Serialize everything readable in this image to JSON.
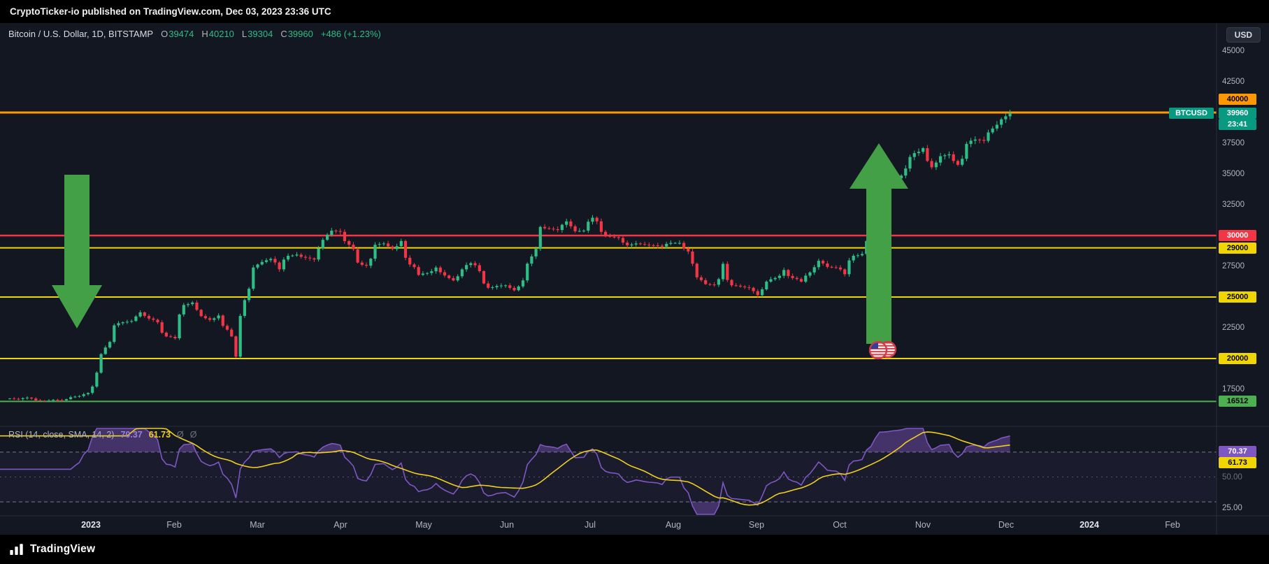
{
  "published_bar": {
    "text": "CryptoTicker-io published on TradingView.com, Dec 03, 2023 23:36 UTC"
  },
  "header": {
    "title": "Bitcoin / U.S. Dollar, 1D, BITSTAMP",
    "open_label": "O",
    "open_value": "39474",
    "high_label": "H",
    "high_value": "40210",
    "low_label": "L",
    "low_value": "39304",
    "close_label": "C",
    "close_value": "39960",
    "change": "+486 (+1.23%)",
    "currency_button": "USD"
  },
  "price_axis": {
    "labels": [
      "45000",
      "42500",
      "37500",
      "35000",
      "32500",
      "27500",
      "22500",
      "17500"
    ],
    "badges": [
      {
        "text": "40000",
        "value": 40000,
        "bg": "#ff9800",
        "fg": "#000000",
        "dy": -19
      },
      {
        "text": "39960",
        "value": 39960,
        "bg": "#089981",
        "fg": "#ffffff",
        "dy": 0
      },
      {
        "text": "23:41",
        "value": 39960,
        "bg": "#089981",
        "fg": "#ffffff",
        "dy": 16
      },
      {
        "text": "30000",
        "value": 30000,
        "bg": "#f23645",
        "fg": "#ffffff",
        "dy": 0
      },
      {
        "text": "29000",
        "value": 29000,
        "bg": "#f0d500",
        "fg": "#000000",
        "dy": 0
      },
      {
        "text": "25000",
        "value": 25000,
        "bg": "#f0d500",
        "fg": "#000000",
        "dy": 0
      },
      {
        "text": "20000",
        "value": 20000,
        "bg": "#f0d500",
        "fg": "#000000",
        "dy": 0
      },
      {
        "text": "16512",
        "value": 16512,
        "bg": "#4caf50",
        "fg": "#000000",
        "dy": 0
      }
    ],
    "symbol_tag": {
      "text": "BTCUSD",
      "bg": "#089981",
      "fg": "#ffffff",
      "value": 39960
    }
  },
  "rsi_axis": {
    "badges": [
      {
        "text": "70.37",
        "value": 70.37,
        "bg": "#7e57c2",
        "fg": "#ffffff"
      },
      {
        "text": "61.73",
        "value": 61.73,
        "bg": "#f0d500",
        "fg": "#000000"
      }
    ],
    "labels": [
      {
        "text": "50.00",
        "value": 50,
        "faint": true
      },
      {
        "text": "25.00",
        "value": 25,
        "faint": false
      }
    ]
  },
  "rsi_pane": {
    "title": "RSI (14, close, SMA, 14, 2)",
    "value": "70.37",
    "ma_value": "61.73",
    "icon": "Ø"
  },
  "time_axis": {
    "labels": [
      "2023",
      "Feb",
      "Mar",
      "Apr",
      "May",
      "Jun",
      "Jul",
      "Aug",
      "Sep",
      "Oct",
      "Nov",
      "Dec",
      "2024",
      "Feb"
    ],
    "years": [
      "2023",
      "2024"
    ]
  },
  "footer": {
    "brand": "TradingView"
  },
  "colors": {
    "background": "#131722",
    "bar": "#000000",
    "up": "#2ebd85",
    "down": "#f23645",
    "teal": "#089981",
    "orange": "#ff9800",
    "red": "#f23645",
    "yellow": "#f0d500",
    "green": "#4caf50",
    "rsi": "#7e57c2",
    "rsi_ma": "#f0cf1d",
    "axis_text": "#b2b5be",
    "arrow": "#43a047",
    "separator": "#2a2e39"
  },
  "chart_data": [
    {
      "type": "candlestick",
      "title": "Bitcoin / U.S. Dollar, 1D, BITSTAMP",
      "symbol": "BTCUSD",
      "exchange": "BITSTAMP",
      "timeframe": "1D",
      "last_ohlc": {
        "open": 39474,
        "high": 40210,
        "low": 39304,
        "close": 39960,
        "change": 486,
        "change_pct": 1.23
      },
      "y_axis_ticks": [
        45000,
        42500,
        40000,
        37500,
        35000,
        32500,
        30000,
        29000,
        27500,
        25000,
        22500,
        20000,
        17500,
        16512
      ],
      "x_range": [
        "Dec 2022",
        "Feb 2024"
      ],
      "start_date": "2022-12-14",
      "interval_days": 3,
      "approx_closes_3day": [
        16750,
        16700,
        16820,
        16600,
        16560,
        16640,
        16600,
        16850,
        16950,
        17200,
        18850,
        20900,
        22700,
        22950,
        23050,
        23750,
        23250,
        22950,
        21800,
        21650,
        24350,
        24550,
        23450,
        23150,
        23500,
        22350,
        20150,
        24750,
        27400,
        27850,
        28100,
        27250,
        28350,
        28450,
        28200,
        28050,
        29650,
        30400,
        30300,
        29250,
        27800,
        27550,
        29250,
        29350,
        28900,
        29550,
        27650,
        26800,
        26950,
        27400,
        26750,
        26350,
        27250,
        27750,
        27100,
        25750,
        25900,
        25950,
        25550,
        26350,
        28300,
        30700,
        30550,
        30450,
        31150,
        30350,
        30400,
        31450,
        30300,
        29900,
        29800,
        29200,
        29350,
        29250,
        29200,
        29100,
        29400,
        29400,
        28700,
        26600,
        26050,
        26000,
        27700,
        25950,
        25850,
        25750,
        25150,
        26250,
        26550,
        27200,
        26550,
        26250,
        27000,
        27950,
        27450,
        27400,
        26850,
        28350,
        28500,
        30100,
        33900,
        34150,
        34650,
        35450,
        36700,
        37100,
        35550,
        36450,
        36600,
        35750,
        37450,
        37800,
        37700,
        38700,
        39450,
        39960
      ],
      "levels": [
        {
          "value": 40000,
          "color": "#ff9800"
        },
        {
          "value": 30000,
          "color": "#f23645"
        },
        {
          "value": 29000,
          "color": "#f0d500"
        },
        {
          "value": 25000,
          "color": "#f0d500"
        },
        {
          "value": 20000,
          "color": "#f0d500"
        },
        {
          "value": 16512,
          "color": "#4caf50"
        }
      ],
      "annotations": [
        {
          "type": "arrow-down",
          "region": "Jan-Feb 2023",
          "color": "#43a047"
        },
        {
          "type": "arrow-up",
          "region": "Nov-Dec 2023",
          "color": "#43a047"
        },
        {
          "type": "us-flag-icon",
          "near_price": 16512,
          "near_date": "Nov 2023"
        }
      ]
    },
    {
      "type": "line",
      "name": "RSI (14, close, SMA, 14, 2)",
      "series": [
        {
          "name": "RSI",
          "current": 70.37,
          "color": "#7e57c2"
        },
        {
          "name": "RSI SMA 14",
          "current": 61.73,
          "color": "#f0cf1d"
        }
      ],
      "levels": [
        70,
        50,
        30
      ],
      "ylim": [
        0,
        100
      ],
      "visible_axis_labels": [
        70.37,
        61.73,
        50.0,
        25.0
      ]
    }
  ]
}
